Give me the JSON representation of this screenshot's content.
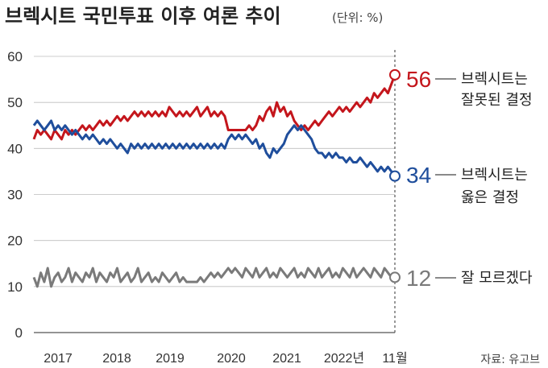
{
  "chart_data": {
    "type": "line",
    "title": "브렉시트 국민투표 이후 여론 추이",
    "unit": "(단위: %)",
    "source": "자료: 유고브",
    "ylim": [
      0,
      60
    ],
    "yticks": [
      "0",
      "10",
      "20",
      "30",
      "40",
      "50",
      "60"
    ],
    "xticks": [
      "2017",
      "2018",
      "2019",
      "2020",
      "2021",
      "2022년",
      "11월"
    ],
    "x_start": "2016-08",
    "x_end": "2022-11",
    "grid": true,
    "series": [
      {
        "name": "브렉시트는 잘못된 결정",
        "label_lines": [
          "브렉시트는",
          "잘못된 결정"
        ],
        "color": "#c4161c",
        "end_value": "56",
        "values": [
          42,
          44,
          43,
          44,
          43,
          42,
          44,
          43,
          42,
          44,
          43,
          44,
          43,
          44,
          45,
          44,
          45,
          44,
          45,
          46,
          45,
          46,
          45,
          46,
          47,
          46,
          47,
          46,
          47,
          48,
          47,
          48,
          47,
          48,
          47,
          48,
          47,
          48,
          47,
          49,
          48,
          47,
          48,
          47,
          48,
          47,
          48,
          49,
          47,
          48,
          49,
          47,
          48,
          47,
          48,
          47,
          44,
          44,
          44,
          44,
          44,
          44,
          45,
          44,
          45,
          47,
          46,
          48,
          49,
          47,
          50,
          48,
          49,
          47,
          48,
          46,
          45,
          44,
          45,
          44,
          45,
          46,
          45,
          46,
          47,
          48,
          47,
          48,
          49,
          48,
          49,
          48,
          49,
          50,
          49,
          50,
          51,
          50,
          52,
          51,
          52,
          53,
          52,
          54,
          56
        ]
      },
      {
        "name": "브렉시트는 옳은 결정",
        "label_lines": [
          "브렉시트는",
          "옳은 결정"
        ],
        "color": "#1f4e9c",
        "end_value": "34",
        "values": [
          45,
          46,
          45,
          44,
          45,
          46,
          44,
          45,
          44,
          45,
          44,
          43,
          44,
          43,
          42,
          43,
          42,
          43,
          42,
          41,
          42,
          41,
          42,
          41,
          40,
          41,
          40,
          39,
          41,
          40,
          41,
          40,
          41,
          40,
          41,
          40,
          41,
          40,
          41,
          40,
          41,
          40,
          41,
          40,
          41,
          40,
          41,
          40,
          41,
          40,
          41,
          40,
          41,
          40,
          41,
          40,
          42,
          43,
          42,
          43,
          42,
          43,
          42,
          41,
          42,
          40,
          41,
          39,
          38,
          40,
          39,
          40,
          41,
          43,
          44,
          45,
          44,
          45,
          44,
          43,
          42,
          40,
          39,
          39,
          38,
          39,
          38,
          39,
          38,
          38,
          37,
          38,
          37,
          37,
          38,
          37,
          36,
          37,
          36,
          35,
          36,
          35,
          36,
          35,
          34
        ]
      },
      {
        "name": "잘 모르겠다",
        "label_lines": [
          "잘 모르겠다"
        ],
        "color": "#7a7a7a",
        "end_value": "12",
        "values": [
          12,
          10,
          13,
          11,
          14,
          10,
          12,
          13,
          11,
          12,
          14,
          11,
          13,
          12,
          11,
          13,
          12,
          14,
          11,
          13,
          12,
          11,
          13,
          12,
          14,
          11,
          12,
          13,
          11,
          12,
          14,
          11,
          12,
          13,
          11,
          12,
          11,
          13,
          12,
          11,
          12,
          13,
          11,
          12,
          11,
          11,
          11,
          11,
          12,
          11,
          12,
          13,
          12,
          13,
          12,
          13,
          14,
          13,
          14,
          13,
          12,
          14,
          13,
          12,
          14,
          12,
          13,
          14,
          12,
          13,
          12,
          14,
          13,
          12,
          13,
          14,
          12,
          13,
          12,
          14,
          13,
          12,
          14,
          12,
          13,
          14,
          12,
          13,
          12,
          14,
          13,
          12,
          14,
          12,
          13,
          14,
          13,
          12,
          14,
          13,
          12,
          14,
          13,
          12,
          12
        ]
      }
    ]
  }
}
